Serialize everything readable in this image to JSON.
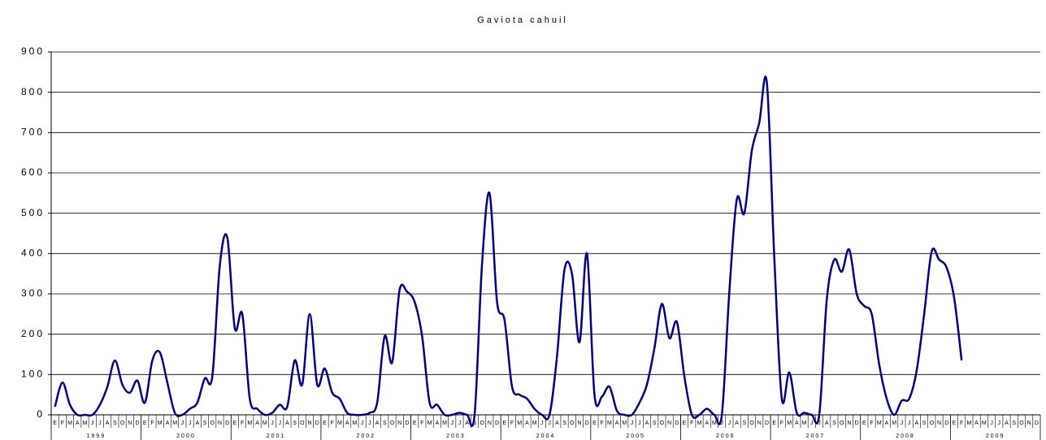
{
  "chart_data": {
    "type": "line",
    "title": "Gaviota cahuil",
    "categories": [
      "E",
      "F",
      "M",
      "A",
      "M",
      "J",
      "J",
      "A",
      "S",
      "O",
      "N",
      "D",
      "E",
      "F",
      "M",
      "A",
      "M",
      "J",
      "J",
      "A",
      "S",
      "O",
      "N",
      "D",
      "E",
      "F",
      "M",
      "A",
      "M",
      "J",
      "J",
      "A",
      "S",
      "O",
      "N",
      "D",
      "E",
      "F",
      "M",
      "A",
      "M",
      "J",
      "J",
      "A",
      "S",
      "O",
      "N",
      "D",
      "E",
      "F",
      "M",
      "A",
      "M",
      "J",
      "J",
      "A",
      "S",
      "O",
      "N",
      "D",
      "E",
      "F",
      "M",
      "A",
      "M",
      "J",
      "J",
      "A",
      "S",
      "O",
      "N",
      "D",
      "E",
      "F",
      "M",
      "A",
      "M",
      "J",
      "J",
      "A",
      "S",
      "O",
      "N",
      "D",
      "E",
      "F",
      "M",
      "A",
      "M",
      "J",
      "J",
      "A",
      "S",
      "O",
      "N",
      "D",
      "E",
      "F",
      "M",
      "A",
      "M",
      "J",
      "J",
      "A",
      "S",
      "O",
      "N",
      "D",
      "E",
      "F",
      "M",
      "A",
      "M",
      "J",
      "J",
      "A",
      "S",
      "O",
      "N",
      "D",
      "E",
      "F",
      "M",
      "A",
      "M",
      "J",
      "J",
      "A",
      "S",
      "O",
      "N",
      "D"
    ],
    "years": [
      "1999",
      "2000",
      "2001",
      "2002",
      "2003",
      "2004",
      "2005",
      "2006",
      "2007",
      "2008",
      "2009"
    ],
    "series": [
      {
        "name": "Gaviota cahuil",
        "color": "#000080",
        "values": [
          20,
          80,
          25,
          0,
          0,
          0,
          25,
          70,
          135,
          75,
          55,
          85,
          30,
          135,
          155,
          80,
          5,
          0,
          15,
          30,
          90,
          95,
          370,
          440,
          215,
          250,
          40,
          15,
          0,
          5,
          25,
          20,
          135,
          75,
          250,
          75,
          115,
          55,
          40,
          5,
          0,
          0,
          5,
          30,
          195,
          130,
          310,
          305,
          280,
          195,
          30,
          25,
          0,
          0,
          5,
          0,
          0,
          375,
          550,
          280,
          235,
          70,
          50,
          40,
          15,
          0,
          0,
          145,
          360,
          350,
          180,
          400,
          50,
          45,
          70,
          10,
          0,
          0,
          30,
          75,
          165,
          275,
          190,
          230,
          95,
          0,
          0,
          15,
          0,
          0,
          305,
          535,
          500,
          655,
          725,
          825,
          390,
          40,
          105,
          5,
          5,
          0,
          0,
          285,
          385,
          355,
          410,
          300,
          270,
          250,
          125,
          40,
          0,
          35,
          40,
          110,
          250,
          405,
          385,
          365,
          290,
          135,
          null,
          null,
          null,
          null,
          null,
          null,
          null,
          null,
          null,
          null
        ]
      }
    ],
    "ylim": [
      0,
      900
    ],
    "yticks": [
      0,
      100,
      200,
      300,
      400,
      500,
      600,
      700,
      800,
      900
    ],
    "grid": true
  }
}
